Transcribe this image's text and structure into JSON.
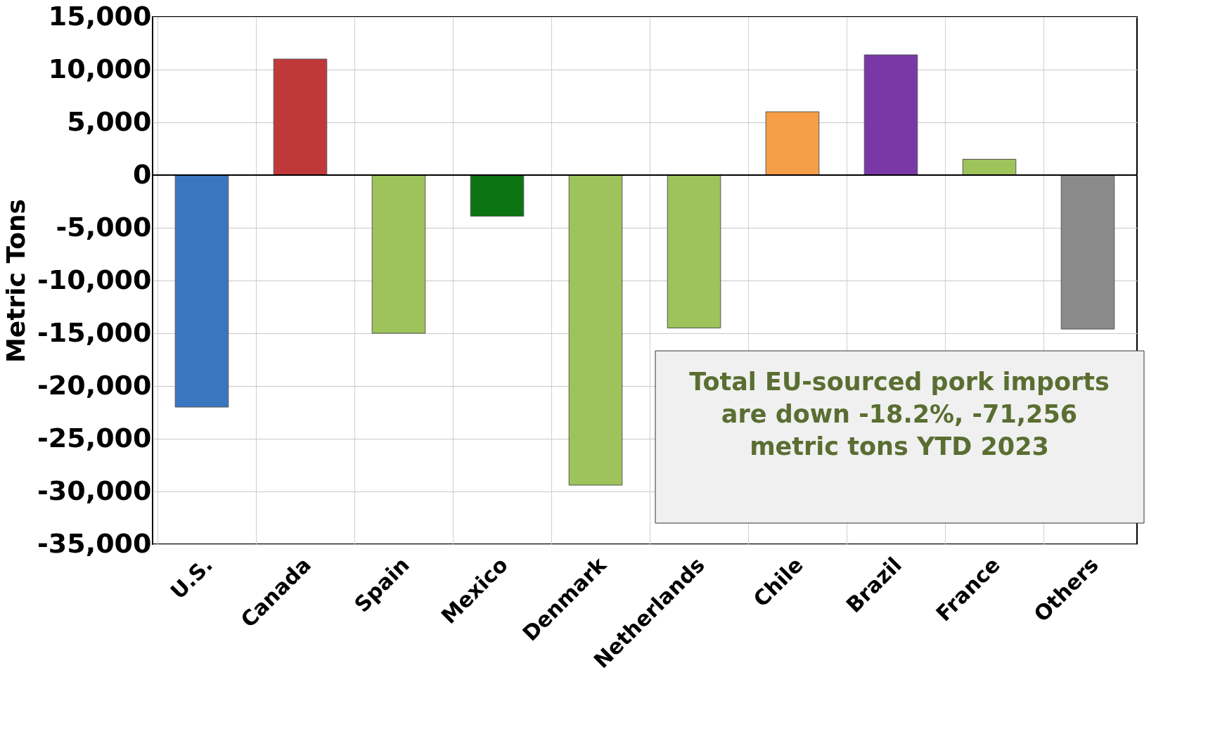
{
  "chart_data": {
    "type": "bar",
    "ylabel": "Metric Tons",
    "categories": [
      "U.S.",
      "Canada",
      "Spain",
      "Mexico",
      "Denmark",
      "Netherlands",
      "Chile",
      "Brazil",
      "France",
      "Others"
    ],
    "values": [
      -22000,
      11000,
      -15000,
      -3900,
      -29400,
      -14500,
      6000,
      11400,
      1500,
      -14600
    ],
    "colors": [
      "#3a75c0",
      "#c0393a",
      "#9dc35a",
      "#0c7412",
      "#9dc35a",
      "#9dc35a",
      "#f79e48",
      "#7a38a6",
      "#9dc35a",
      "#8a8a8a"
    ],
    "ylim": [
      -35000,
      15000
    ],
    "yticks": [
      {
        "value": -35000,
        "label": "-35,000"
      },
      {
        "value": -30000,
        "label": "-30,000"
      },
      {
        "value": -25000,
        "label": "-25,000"
      },
      {
        "value": -20000,
        "label": "-20,000"
      },
      {
        "value": -15000,
        "label": "-15,000"
      },
      {
        "value": -10000,
        "label": "-10,000"
      },
      {
        "value": -5000,
        "label": "-5,000"
      },
      0,
      {
        "value": 5000,
        "label": "5,000"
      },
      {
        "value": 10000,
        "label": "10,000"
      },
      {
        "value": 15000,
        "label": "15,000"
      }
    ],
    "grid": true,
    "annotations": [
      "Total EU-sourced pork imports are down -18.2%, -71,256 metric tons YTD 2023"
    ]
  }
}
